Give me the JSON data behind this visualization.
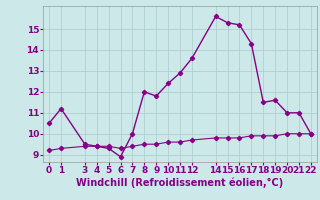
{
  "xlabel": "Windchill (Refroidissement éolien,°C)",
  "background_color": "#cce8e8",
  "line_color": "#880088",
  "grid_color": "#aacccc",
  "x_line1": [
    0,
    1,
    3,
    4,
    5,
    6,
    7,
    8,
    9,
    10,
    11,
    12,
    14,
    15,
    16,
    17,
    18,
    19,
    20,
    21,
    22
  ],
  "y_line1": [
    10.5,
    11.2,
    9.5,
    9.4,
    9.3,
    8.9,
    10.0,
    12.0,
    11.8,
    12.4,
    12.9,
    13.6,
    15.6,
    15.3,
    15.2,
    14.3,
    11.5,
    11.6,
    11.0,
    11.0,
    10.0
  ],
  "x_line2": [
    0,
    1,
    3,
    4,
    5,
    6,
    7,
    8,
    9,
    10,
    11,
    12,
    14,
    15,
    16,
    17,
    18,
    19,
    20,
    21,
    22
  ],
  "y_line2": [
    9.2,
    9.3,
    9.4,
    9.4,
    9.4,
    9.3,
    9.4,
    9.5,
    9.5,
    9.6,
    9.6,
    9.7,
    9.8,
    9.8,
    9.8,
    9.9,
    9.9,
    9.9,
    10.0,
    10.0,
    10.0
  ],
  "xlim": [
    -0.5,
    22.5
  ],
  "ylim": [
    8.65,
    16.1
  ],
  "yticks": [
    9,
    10,
    11,
    12,
    13,
    14,
    15
  ],
  "xticks": [
    0,
    1,
    3,
    4,
    5,
    6,
    7,
    8,
    9,
    10,
    11,
    12,
    14,
    15,
    16,
    17,
    18,
    19,
    20,
    21,
    22
  ],
  "tick_fontsize": 6.5,
  "xlabel_fontsize": 7,
  "marker": "D",
  "markersize": 2.2,
  "linewidth1": 1.0,
  "linewidth2": 0.8
}
